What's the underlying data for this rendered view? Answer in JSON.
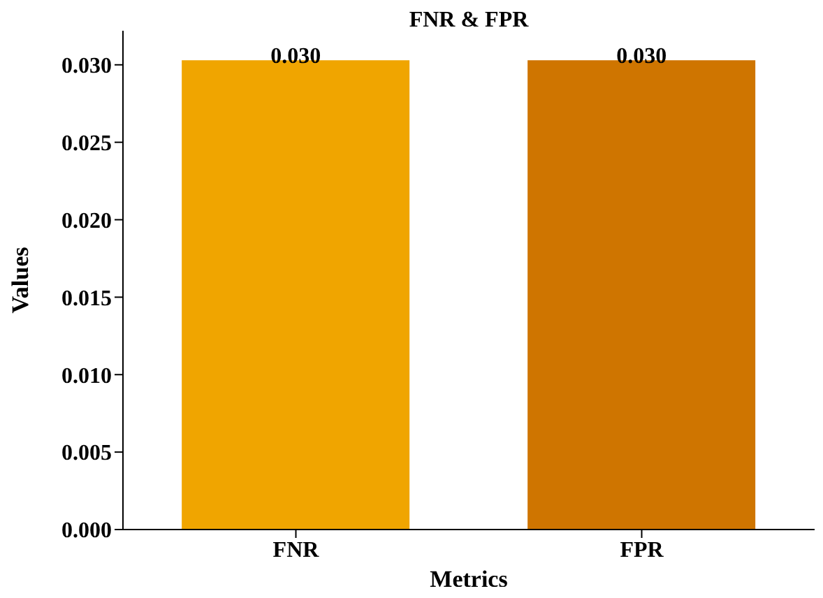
{
  "chart_data": {
    "type": "bar",
    "title": "FNR & FPR",
    "xlabel": "Metrics",
    "ylabel": "Values",
    "categories": [
      "FNR",
      "FPR"
    ],
    "values": [
      0.0303,
      0.0303
    ],
    "value_labels": [
      "0.030",
      "0.030"
    ],
    "colors": [
      "#f0a500",
      "#cf7500"
    ],
    "ylim": [
      0,
      0.0322
    ],
    "yticks": [
      {
        "value": 0,
        "label": "0.000"
      },
      {
        "value": 0.005,
        "label": "0.005"
      },
      {
        "value": 0.01,
        "label": "0.010"
      },
      {
        "value": 0.015,
        "label": "0.015"
      },
      {
        "value": 0.02,
        "label": "0.020"
      },
      {
        "value": 0.025,
        "label": "0.025"
      },
      {
        "value": 0.03,
        "label": "0.030"
      }
    ],
    "grid": false,
    "legend": false
  }
}
